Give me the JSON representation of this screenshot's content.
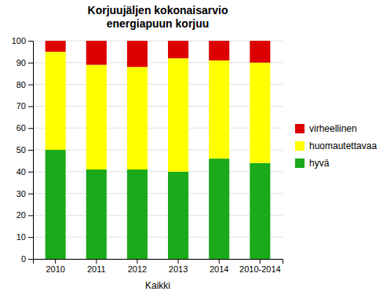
{
  "chart_data": {
    "type": "bar",
    "stacked": true,
    "title": "Korjuujäljen kokonaisarvio\nenergiapuun korjuu",
    "xlabel": "Kaikki",
    "categories": [
      "2010",
      "2011",
      "2012",
      "2013",
      "2014",
      "2010-2014"
    ],
    "series": [
      {
        "name": "hyvä",
        "color": "#1aaa1a",
        "values": [
          50,
          41,
          41,
          40,
          46,
          44
        ]
      },
      {
        "name": "huomautettavaa",
        "color": "#FFFF00",
        "values": [
          45,
          48,
          47,
          52,
          45,
          46
        ]
      },
      {
        "name": "virheellinen",
        "color": "#DD0000",
        "values": [
          5,
          11,
          12,
          8,
          9,
          10
        ]
      }
    ],
    "ylim": [
      0,
      100
    ],
    "yticks": [
      0,
      10,
      20,
      30,
      40,
      50,
      60,
      70,
      80,
      90,
      100
    ],
    "grid": true,
    "legend": "right"
  }
}
